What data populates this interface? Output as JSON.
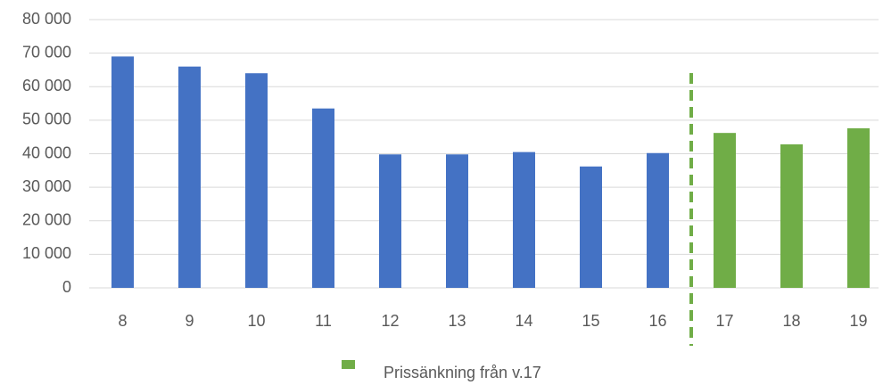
{
  "chart_data": {
    "type": "bar",
    "categories": [
      "8",
      "9",
      "10",
      "11",
      "12",
      "13",
      "14",
      "15",
      "16",
      "17",
      "18",
      "19"
    ],
    "values": [
      69000,
      66000,
      64000,
      53500,
      39800,
      39800,
      40500,
      36200,
      40200,
      46200,
      42800,
      47600
    ],
    "colors": [
      "#4472c4",
      "#4472c4",
      "#4472c4",
      "#4472c4",
      "#4472c4",
      "#4472c4",
      "#4472c4",
      "#4472c4",
      "#4472c4",
      "#70ad47",
      "#70ad47",
      "#70ad47"
    ],
    "ylim": [
      0,
      80000
    ],
    "yticks": [
      0,
      {
        "value": 10000,
        "label": "10 000"
      },
      {
        "value": 20000,
        "label": "20 000"
      },
      {
        "value": 30000,
        "label": "30 000"
      },
      {
        "value": 40000,
        "label": "40 000"
      },
      {
        "value": 50000,
        "label": "50 000"
      },
      {
        "value": 60000,
        "label": "60 000"
      },
      {
        "value": 70000,
        "label": "70 000"
      },
      {
        "value": 80000,
        "label": "80 000"
      }
    ],
    "grid": true,
    "legend": {
      "label": "Prissänkning från v.17",
      "color": "#70ad47"
    }
  }
}
